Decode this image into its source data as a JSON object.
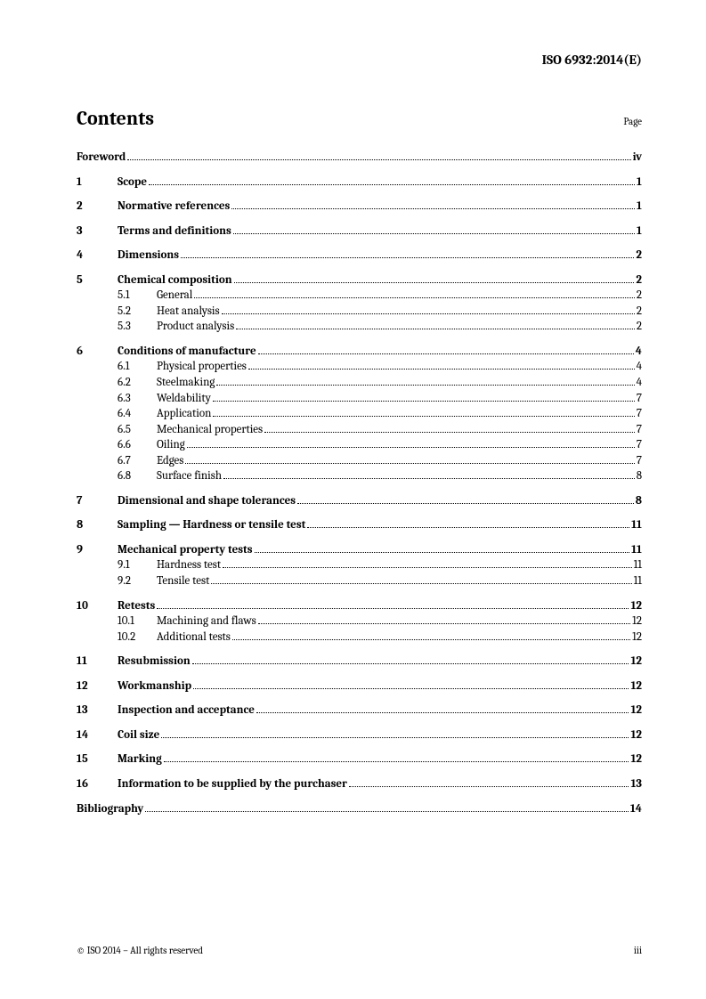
{
  "doc_header": "ISO 6932:2014(E)",
  "contents_title": "Contents",
  "page_label": "Page",
  "footer_left": "© ISO 2014 – All rights reserved",
  "footer_right": "iii",
  "toc": [
    {
      "level": 0,
      "num": "",
      "title": "Foreword",
      "page": "iv",
      "first": true,
      "no_indent": true
    },
    {
      "level": 0,
      "num": "1",
      "title": "Scope",
      "page": "1"
    },
    {
      "level": 0,
      "num": "2",
      "title": "Normative references",
      "page": "1"
    },
    {
      "level": 0,
      "num": "3",
      "title": "Terms and definitions",
      "page": "1"
    },
    {
      "level": 0,
      "num": "4",
      "title": "Dimensions",
      "page": "2"
    },
    {
      "level": 0,
      "num": "5",
      "title": "Chemical composition",
      "page": "2"
    },
    {
      "level": 1,
      "num": "5.1",
      "title": "General",
      "page": "2"
    },
    {
      "level": 1,
      "num": "5.2",
      "title": "Heat analysis",
      "page": "2"
    },
    {
      "level": 1,
      "num": "5.3",
      "title": "Product analysis",
      "page": "2"
    },
    {
      "level": 0,
      "num": "6",
      "title": "Conditions of manufacture",
      "page": "4"
    },
    {
      "level": 1,
      "num": "6.1",
      "title": "Physical properties",
      "page": "4"
    },
    {
      "level": 1,
      "num": "6.2",
      "title": "Steelmaking",
      "page": "4"
    },
    {
      "level": 1,
      "num": "6.3",
      "title": "Weldability",
      "page": "7"
    },
    {
      "level": 1,
      "num": "6.4",
      "title": "Application",
      "page": "7"
    },
    {
      "level": 1,
      "num": "6.5",
      "title": "Mechanical properties",
      "page": "7"
    },
    {
      "level": 1,
      "num": "6.6",
      "title": "Oiling",
      "page": "7"
    },
    {
      "level": 1,
      "num": "6.7",
      "title": "Edges",
      "page": "7"
    },
    {
      "level": 1,
      "num": "6.8",
      "title": "Surface finish",
      "page": "8"
    },
    {
      "level": 0,
      "num": "7",
      "title": "Dimensional and shape tolerances",
      "page": "8"
    },
    {
      "level": 0,
      "num": "8",
      "title": "Sampling — Hardness or tensile test",
      "page": "11"
    },
    {
      "level": 0,
      "num": "9",
      "title": "Mechanical property tests",
      "page": "11"
    },
    {
      "level": 1,
      "num": "9.1",
      "title": "Hardness test",
      "page": "11"
    },
    {
      "level": 1,
      "num": "9.2",
      "title": "Tensile test",
      "page": "11"
    },
    {
      "level": 0,
      "num": "10",
      "title": "Retests",
      "page": "12"
    },
    {
      "level": 1,
      "num": "10.1",
      "title": "Machining and flaws",
      "page": "12"
    },
    {
      "level": 1,
      "num": "10.2",
      "title": "Additional tests",
      "page": "12"
    },
    {
      "level": 0,
      "num": "11",
      "title": "Resubmission",
      "page": "12"
    },
    {
      "level": 0,
      "num": "12",
      "title": "Workmanship",
      "page": "12"
    },
    {
      "level": 0,
      "num": "13",
      "title": "Inspection and acceptance",
      "page": "12"
    },
    {
      "level": 0,
      "num": "14",
      "title": "Coil size",
      "page": "12"
    },
    {
      "level": 0,
      "num": "15",
      "title": "Marking",
      "page": "12"
    },
    {
      "level": 0,
      "num": "16",
      "title": "Information to be supplied by the purchaser",
      "page": "13"
    },
    {
      "level": 0,
      "num": "",
      "title": "Bibliography",
      "page": "14",
      "no_indent": true
    }
  ]
}
